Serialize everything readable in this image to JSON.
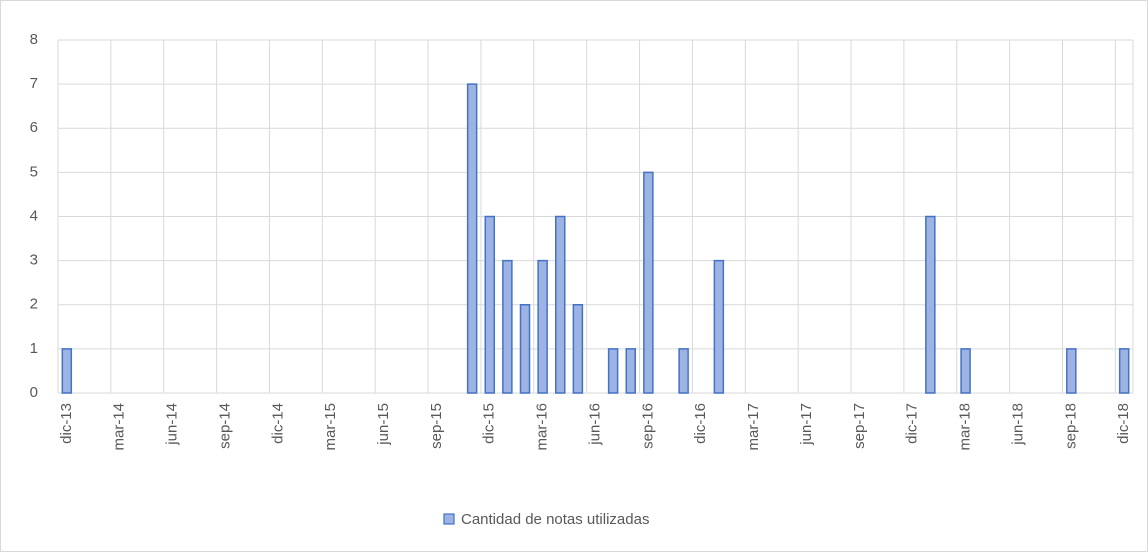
{
  "chart_data": {
    "type": "bar",
    "categories": [
      "dic-13",
      null,
      null,
      "mar-14",
      null,
      null,
      "jun-14",
      null,
      null,
      "sep-14",
      null,
      null,
      "dic-14",
      null,
      null,
      "mar-15",
      null,
      null,
      "jun-15",
      null,
      null,
      "sep-15",
      null,
      null,
      "dic-15",
      null,
      null,
      "mar-16",
      null,
      null,
      "jun-16",
      null,
      null,
      "sep-16",
      null,
      null,
      "dic-16",
      null,
      null,
      "mar-17",
      null,
      null,
      "jun-17",
      null,
      null,
      "sep-17",
      null,
      null,
      "dic-17",
      null,
      null,
      "mar-18",
      null,
      null,
      "jun-18",
      null,
      null,
      "sep-18",
      null,
      null,
      "dic-18"
    ],
    "series": [
      {
        "name": "Cantidad de notas utilizadas",
        "color": "#9db3e4",
        "edgecolor": "#4472c4",
        "values": [
          1,
          null,
          null,
          null,
          null,
          null,
          null,
          null,
          null,
          null,
          null,
          null,
          null,
          null,
          null,
          null,
          null,
          null,
          null,
          null,
          null,
          null,
          null,
          7,
          4,
          3,
          2,
          3,
          4,
          2,
          null,
          1,
          1,
          5,
          null,
          1,
          null,
          3,
          null,
          null,
          null,
          null,
          null,
          null,
          null,
          null,
          null,
          null,
          null,
          4,
          null,
          1,
          null,
          null,
          null,
          null,
          null,
          1,
          null,
          null,
          1
        ]
      }
    ],
    "ylim": [
      0,
      8
    ],
    "yticks": [
      0,
      1,
      2,
      3,
      4,
      5,
      6,
      7,
      8
    ],
    "grid": true,
    "legend": "bottom"
  }
}
